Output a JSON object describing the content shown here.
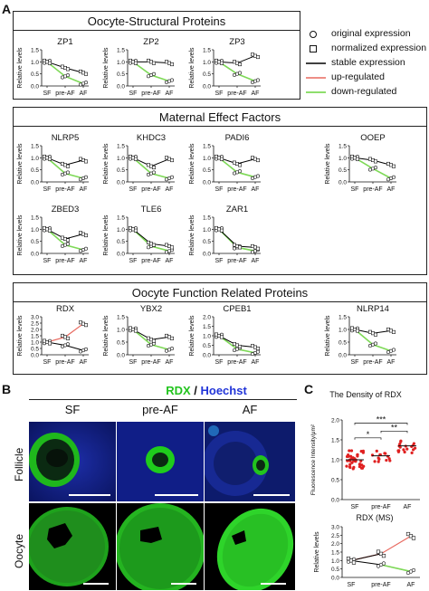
{
  "panel_letters": {
    "a": "A",
    "b": "B",
    "c": "C"
  },
  "legend": {
    "original": "original expression",
    "normalized": "normalized expression",
    "stable": "stable expression",
    "up": "up-regulated",
    "down": "down-regulated",
    "colors": {
      "stable": "#000000",
      "up": "#e8695f",
      "down": "#7ed957"
    }
  },
  "sections": {
    "s1": "Oocyte-Structural Proteins",
    "s2": "Maternal Effect Factors",
    "s3": "Oocyte Function Related Proteins"
  },
  "axis": {
    "ylabel": "Relative levels",
    "groups": [
      "SF",
      "pre-AF",
      "AF"
    ]
  },
  "mini_charts": [
    {
      "title": "ZP1",
      "ymax": 1.5,
      "ticks": [
        0.0,
        0.5,
        1.0,
        1.5
      ],
      "orig": [
        1.0,
        0.4,
        0.1
      ],
      "norm": [
        1.0,
        0.75,
        0.55
      ],
      "trend": "down"
    },
    {
      "title": "ZP2",
      "ymax": 1.5,
      "ticks": [
        0.0,
        0.5,
        1.0,
        1.5
      ],
      "orig": [
        1.0,
        0.45,
        0.2
      ],
      "norm": [
        1.0,
        1.0,
        0.95
      ],
      "trend": "down"
    },
    {
      "title": "ZP3",
      "ymax": 1.5,
      "ticks": [
        0.0,
        0.5,
        1.0,
        1.5
      ],
      "orig": [
        1.0,
        0.5,
        0.2
      ],
      "norm": [
        1.0,
        0.95,
        1.25
      ],
      "trend": "down"
    },
    {
      "title": "NLRP5",
      "ymax": 1.5,
      "ticks": [
        0.0,
        0.5,
        1.0,
        1.5
      ],
      "orig": [
        1.0,
        0.35,
        0.15
      ],
      "norm": [
        1.0,
        0.7,
        0.9
      ],
      "trend": "down"
    },
    {
      "title": "KHDC3",
      "ymax": 1.5,
      "ticks": [
        0.0,
        0.5,
        1.0,
        1.5
      ],
      "orig": [
        1.0,
        0.35,
        0.15
      ],
      "norm": [
        1.0,
        0.65,
        0.95
      ],
      "trend": "down"
    },
    {
      "title": "PADI6",
      "ymax": 1.5,
      "ticks": [
        0.0,
        0.5,
        1.0,
        1.5
      ],
      "orig": [
        1.0,
        0.4,
        0.2
      ],
      "norm": [
        1.0,
        0.75,
        0.95
      ],
      "trend": "down"
    },
    {
      "title": "OOEP",
      "ymax": 1.5,
      "ticks": [
        0.0,
        0.5,
        1.0,
        1.5
      ],
      "orig": [
        1.0,
        0.55,
        0.15
      ],
      "norm": [
        1.0,
        0.9,
        0.7
      ],
      "trend": "down"
    },
    {
      "title": "ZBED3",
      "ymax": 1.5,
      "ticks": [
        0.0,
        0.5,
        1.0,
        1.5
      ],
      "orig": [
        1.0,
        0.35,
        0.15
      ],
      "norm": [
        1.0,
        0.6,
        0.8
      ],
      "trend": "down"
    },
    {
      "title": "TLE6",
      "ymax": 1.5,
      "ticks": [
        0.0,
        0.5,
        1.0,
        1.5
      ],
      "orig": [
        1.0,
        0.3,
        0.1
      ],
      "norm": [
        1.0,
        0.4,
        0.3
      ],
      "trend": "down"
    },
    {
      "title": "ZAR1",
      "ymax": 1.5,
      "ticks": [
        0.0,
        0.5,
        1.0,
        1.5
      ],
      "orig": [
        1.0,
        0.25,
        0.1
      ],
      "norm": [
        1.0,
        0.3,
        0.25
      ],
      "trend": "down"
    },
    {
      "title": "RDX",
      "ymax": 3.0,
      "ticks": [
        0.0,
        0.5,
        1.0,
        1.5,
        2.0,
        2.5,
        3.0
      ],
      "orig": [
        1.0,
        0.75,
        0.35
      ],
      "norm": [
        1.0,
        1.4,
        2.45
      ],
      "trend": "up"
    },
    {
      "title": "YBX2",
      "ymax": 1.5,
      "ticks": [
        0.0,
        0.5,
        1.0,
        1.5
      ],
      "orig": [
        1.0,
        0.4,
        0.2
      ],
      "norm": [
        1.0,
        0.6,
        0.7
      ],
      "trend": "down"
    },
    {
      "title": "CPEB1",
      "ymax": 2.0,
      "ticks": [
        0.0,
        0.5,
        1.0,
        1.5,
        2.0
      ],
      "orig": [
        1.0,
        0.3,
        0.1
      ],
      "norm": [
        1.0,
        0.5,
        0.4
      ],
      "trend": "down"
    },
    {
      "title": "NLRP14",
      "ymax": 1.5,
      "ticks": [
        0.0,
        0.5,
        1.0,
        1.5
      ],
      "orig": [
        1.0,
        0.4,
        0.15
      ],
      "norm": [
        1.0,
        0.85,
        0.95
      ],
      "trend": "down"
    }
  ],
  "panel_b": {
    "title_rdx": "RDX",
    "title_sep": " / ",
    "title_hoechst": "Hoechst",
    "columns": [
      "SF",
      "pre-AF",
      "AF"
    ],
    "rows": [
      "Follicle",
      "Oocyte"
    ],
    "colors": {
      "rdx": "#22c41e",
      "hoechst": "#2235d8"
    }
  },
  "panel_c": {
    "density": {
      "title": "The Density of RDX",
      "ylabel": "Fluorescence Intensity/μm²",
      "categories": [
        "SF",
        "pre-AF",
        "AF"
      ],
      "ticks": [
        0.0,
        0.5,
        1.0,
        1.5,
        2.0
      ],
      "means": [
        1.0,
        1.1,
        1.35
      ],
      "sig": [
        {
          "label": "*",
          "from": 0,
          "to": 1
        },
        {
          "label": "**",
          "from": 1,
          "to": 2
        },
        {
          "label": "***",
          "from": 0,
          "to": 2
        }
      ]
    },
    "ms": {
      "title": "RDX (MS)",
      "ylabel": "Relative levels",
      "categories": [
        "SF",
        "pre-AF",
        "AF"
      ],
      "ticks": [
        0.0,
        0.5,
        1.0,
        1.5,
        2.0,
        2.5,
        3.0
      ],
      "orig": [
        1.0,
        0.75,
        0.35
      ],
      "norm": [
        1.0,
        1.4,
        2.45
      ]
    }
  }
}
